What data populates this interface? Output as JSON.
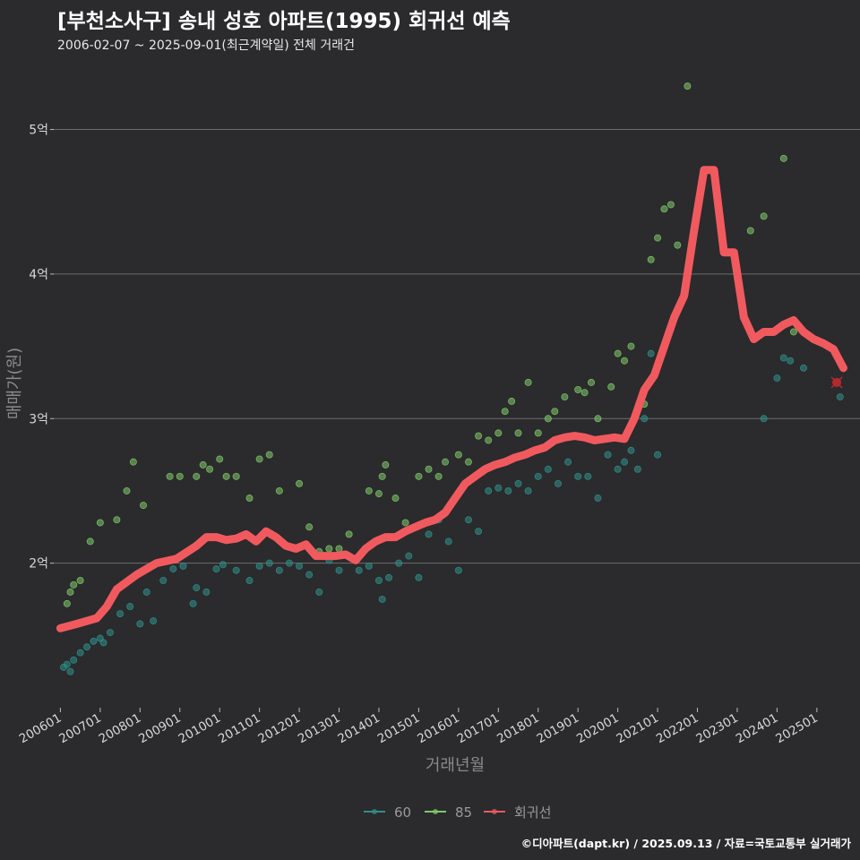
{
  "title": "[부천소사구] 송내 성호 아파트(1995) 회귀선 예측",
  "subtitle": "2006-02-07 ~ 2025-09-01(최근계약일) 전체 거래건",
  "credit": "©디아파트(dapt.kr) / 2025.09.13 / 자료=국토교통부 실거래가",
  "colors": {
    "background": "#2b2a2c",
    "series_60": "#2f8f8a",
    "series_85": "#7fc96b",
    "regression": "#f05a5e",
    "grid": "#6c6c6c"
  },
  "chart_data": {
    "type": "scatter",
    "xlabel": "거래년월",
    "ylabel": "매매가(원)",
    "ylim": [
      1.0,
      5.4
    ],
    "xlim": [
      "2005-11",
      "2026-02"
    ],
    "y_ticks": [
      {
        "value": 2,
        "label": "2억"
      },
      {
        "value": 3,
        "label": "3억"
      },
      {
        "value": 4,
        "label": "4억"
      },
      {
        "value": 5,
        "label": "5억"
      }
    ],
    "x_ticks": [
      "200601",
      "200701",
      "200801",
      "200901",
      "201001",
      "201101",
      "201201",
      "201301",
      "201401",
      "201501",
      "201601",
      "201701",
      "201801",
      "201901",
      "202001",
      "202101",
      "202201",
      "202301",
      "202401",
      "202501"
    ],
    "legend": {
      "position": "bottom",
      "entries": [
        "60",
        "85",
        "회귀선"
      ]
    },
    "grid": true,
    "series": [
      {
        "name": "60",
        "points": [
          [
            "2006-02",
            1.28
          ],
          [
            "2006-03",
            1.3
          ],
          [
            "2006-04",
            1.25
          ],
          [
            "2006-05",
            1.33
          ],
          [
            "2006-07",
            1.38
          ],
          [
            "2006-09",
            1.42
          ],
          [
            "2006-11",
            1.46
          ],
          [
            "2007-01",
            1.48
          ],
          [
            "2007-02",
            1.45
          ],
          [
            "2007-04",
            1.52
          ],
          [
            "2007-07",
            1.65
          ],
          [
            "2007-10",
            1.7
          ],
          [
            "2008-01",
            1.58
          ],
          [
            "2008-03",
            1.8
          ],
          [
            "2008-05",
            1.6
          ],
          [
            "2008-08",
            1.88
          ],
          [
            "2008-11",
            1.96
          ],
          [
            "2009-02",
            1.98
          ],
          [
            "2009-05",
            1.72
          ],
          [
            "2009-06",
            1.83
          ],
          [
            "2009-09",
            1.8
          ],
          [
            "2009-12",
            1.96
          ],
          [
            "2010-02",
            1.99
          ],
          [
            "2010-06",
            1.95
          ],
          [
            "2010-10",
            1.88
          ],
          [
            "2011-01",
            1.98
          ],
          [
            "2011-04",
            2.0
          ],
          [
            "2011-07",
            1.95
          ],
          [
            "2011-10",
            2.0
          ],
          [
            "2012-01",
            1.98
          ],
          [
            "2012-04",
            1.92
          ],
          [
            "2012-07",
            1.8
          ],
          [
            "2012-10",
            2.02
          ],
          [
            "2013-01",
            1.95
          ],
          [
            "2013-04",
            2.05
          ],
          [
            "2013-07",
            1.95
          ],
          [
            "2013-10",
            1.98
          ],
          [
            "2014-01",
            1.88
          ],
          [
            "2014-02",
            1.75
          ],
          [
            "2014-04",
            1.9
          ],
          [
            "2014-07",
            2.0
          ],
          [
            "2014-10",
            2.05
          ],
          [
            "2015-01",
            1.9
          ],
          [
            "2015-04",
            2.2
          ],
          [
            "2015-07",
            2.3
          ],
          [
            "2015-10",
            2.15
          ],
          [
            "2016-01",
            1.95
          ],
          [
            "2016-04",
            2.3
          ],
          [
            "2016-07",
            2.22
          ],
          [
            "2016-10",
            2.5
          ],
          [
            "2017-01",
            2.52
          ],
          [
            "2017-04",
            2.5
          ],
          [
            "2017-07",
            2.55
          ],
          [
            "2017-10",
            2.5
          ],
          [
            "2018-01",
            2.6
          ],
          [
            "2018-04",
            2.65
          ],
          [
            "2018-07",
            2.55
          ],
          [
            "2018-10",
            2.7
          ],
          [
            "2019-01",
            2.6
          ],
          [
            "2019-04",
            2.6
          ],
          [
            "2019-07",
            2.45
          ],
          [
            "2019-10",
            2.75
          ],
          [
            "2020-01",
            2.65
          ],
          [
            "2020-03",
            2.7
          ],
          [
            "2020-05",
            2.78
          ],
          [
            "2020-07",
            2.65
          ],
          [
            "2020-09",
            3.0
          ],
          [
            "2020-11",
            3.45
          ],
          [
            "2021-01",
            2.75
          ],
          [
            "2021-03",
            3.5
          ],
          [
            "2023-09",
            3.0
          ],
          [
            "2024-01",
            3.28
          ],
          [
            "2024-03",
            3.42
          ],
          [
            "2024-05",
            3.4
          ],
          [
            "2024-09",
            3.35
          ],
          [
            "2025-08",
            3.15
          ]
        ]
      },
      {
        "name": "85",
        "points": [
          [
            "2006-03",
            1.72
          ],
          [
            "2006-04",
            1.8
          ],
          [
            "2006-05",
            1.85
          ],
          [
            "2006-07",
            1.88
          ],
          [
            "2006-10",
            2.15
          ],
          [
            "2007-01",
            2.28
          ],
          [
            "2007-06",
            2.3
          ],
          [
            "2007-09",
            2.5
          ],
          [
            "2007-11",
            2.7
          ],
          [
            "2008-02",
            2.4
          ],
          [
            "2008-06",
            2.0
          ],
          [
            "2008-10",
            2.6
          ],
          [
            "2009-01",
            2.6
          ],
          [
            "2009-06",
            2.6
          ],
          [
            "2009-08",
            2.68
          ],
          [
            "2009-10",
            2.65
          ],
          [
            "2010-01",
            2.72
          ],
          [
            "2010-03",
            2.6
          ],
          [
            "2010-06",
            2.6
          ],
          [
            "2010-10",
            2.45
          ],
          [
            "2011-01",
            2.72
          ],
          [
            "2011-04",
            2.75
          ],
          [
            "2011-07",
            2.5
          ],
          [
            "2012-01",
            2.55
          ],
          [
            "2012-04",
            2.25
          ],
          [
            "2012-07",
            2.08
          ],
          [
            "2012-10",
            2.1
          ],
          [
            "2013-01",
            2.1
          ],
          [
            "2013-04",
            2.2
          ],
          [
            "2013-10",
            2.5
          ],
          [
            "2014-01",
            2.48
          ],
          [
            "2014-02",
            2.6
          ],
          [
            "2014-03",
            2.68
          ],
          [
            "2014-06",
            2.45
          ],
          [
            "2014-09",
            2.28
          ],
          [
            "2015-01",
            2.6
          ],
          [
            "2015-04",
            2.65
          ],
          [
            "2015-07",
            2.6
          ],
          [
            "2015-09",
            2.7
          ],
          [
            "2016-01",
            2.75
          ],
          [
            "2016-04",
            2.7
          ],
          [
            "2016-07",
            2.88
          ],
          [
            "2016-10",
            2.85
          ],
          [
            "2017-01",
            2.9
          ],
          [
            "2017-03",
            3.05
          ],
          [
            "2017-05",
            3.12
          ],
          [
            "2017-07",
            2.9
          ],
          [
            "2017-10",
            3.25
          ],
          [
            "2018-01",
            2.9
          ],
          [
            "2018-04",
            3.0
          ],
          [
            "2018-06",
            3.05
          ],
          [
            "2018-09",
            3.15
          ],
          [
            "2019-01",
            3.2
          ],
          [
            "2019-03",
            3.18
          ],
          [
            "2019-05",
            3.25
          ],
          [
            "2019-07",
            3.0
          ],
          [
            "2019-11",
            3.22
          ],
          [
            "2020-01",
            3.45
          ],
          [
            "2020-03",
            3.4
          ],
          [
            "2020-05",
            3.5
          ],
          [
            "2020-09",
            3.1
          ],
          [
            "2020-11",
            4.1
          ],
          [
            "2021-01",
            4.25
          ],
          [
            "2021-03",
            4.45
          ],
          [
            "2021-05",
            4.48
          ],
          [
            "2021-07",
            4.2
          ],
          [
            "2021-10",
            5.3
          ],
          [
            "2023-05",
            4.3
          ],
          [
            "2023-09",
            4.4
          ],
          [
            "2024-03",
            4.8
          ],
          [
            "2024-06",
            3.6
          ]
        ]
      },
      {
        "name": "회귀선",
        "points": [
          [
            "2006-01",
            1.55
          ],
          [
            "2006-06",
            1.58
          ],
          [
            "2006-12",
            1.62
          ],
          [
            "2007-03",
            1.7
          ],
          [
            "2007-06",
            1.82
          ],
          [
            "2007-12",
            1.92
          ],
          [
            "2008-06",
            2.0
          ],
          [
            "2008-12",
            2.03
          ],
          [
            "2009-06",
            2.12
          ],
          [
            "2009-09",
            2.18
          ],
          [
            "2009-12",
            2.18
          ],
          [
            "2010-03",
            2.16
          ],
          [
            "2010-06",
            2.17
          ],
          [
            "2010-09",
            2.2
          ],
          [
            "2010-12",
            2.15
          ],
          [
            "2011-03",
            2.22
          ],
          [
            "2011-06",
            2.18
          ],
          [
            "2011-09",
            2.12
          ],
          [
            "2011-12",
            2.1
          ],
          [
            "2012-03",
            2.13
          ],
          [
            "2012-06",
            2.05
          ],
          [
            "2012-12",
            2.05
          ],
          [
            "2013-03",
            2.06
          ],
          [
            "2013-06",
            2.02
          ],
          [
            "2013-09",
            2.1
          ],
          [
            "2013-12",
            2.15
          ],
          [
            "2014-03",
            2.18
          ],
          [
            "2014-06",
            2.18
          ],
          [
            "2014-09",
            2.22
          ],
          [
            "2014-12",
            2.25
          ],
          [
            "2015-03",
            2.28
          ],
          [
            "2015-06",
            2.3
          ],
          [
            "2015-09",
            2.35
          ],
          [
            "2015-12",
            2.45
          ],
          [
            "2016-03",
            2.55
          ],
          [
            "2016-06",
            2.6
          ],
          [
            "2016-09",
            2.65
          ],
          [
            "2016-12",
            2.68
          ],
          [
            "2017-03",
            2.7
          ],
          [
            "2017-06",
            2.73
          ],
          [
            "2017-09",
            2.75
          ],
          [
            "2017-12",
            2.78
          ],
          [
            "2018-03",
            2.8
          ],
          [
            "2018-06",
            2.85
          ],
          [
            "2018-09",
            2.87
          ],
          [
            "2018-12",
            2.88
          ],
          [
            "2019-03",
            2.87
          ],
          [
            "2019-06",
            2.85
          ],
          [
            "2019-09",
            2.86
          ],
          [
            "2019-12",
            2.87
          ],
          [
            "2020-03",
            2.86
          ],
          [
            "2020-06",
            3.0
          ],
          [
            "2020-09",
            3.2
          ],
          [
            "2020-12",
            3.3
          ],
          [
            "2021-03",
            3.5
          ],
          [
            "2021-06",
            3.7
          ],
          [
            "2021-09",
            3.85
          ],
          [
            "2021-12",
            4.3
          ],
          [
            "2022-03",
            4.72
          ],
          [
            "2022-06",
            4.72
          ],
          [
            "2022-09",
            4.15
          ],
          [
            "2022-12",
            4.15
          ],
          [
            "2023-03",
            3.7
          ],
          [
            "2023-06",
            3.55
          ],
          [
            "2023-09",
            3.6
          ],
          [
            "2023-12",
            3.6
          ],
          [
            "2024-03",
            3.65
          ],
          [
            "2024-06",
            3.68
          ],
          [
            "2024-09",
            3.6
          ],
          [
            "2024-12",
            3.55
          ],
          [
            "2025-03",
            3.52
          ],
          [
            "2025-06",
            3.48
          ],
          [
            "2025-09",
            3.35
          ]
        ]
      }
    ],
    "prediction_marker": [
      "2025-07",
      3.25
    ]
  }
}
